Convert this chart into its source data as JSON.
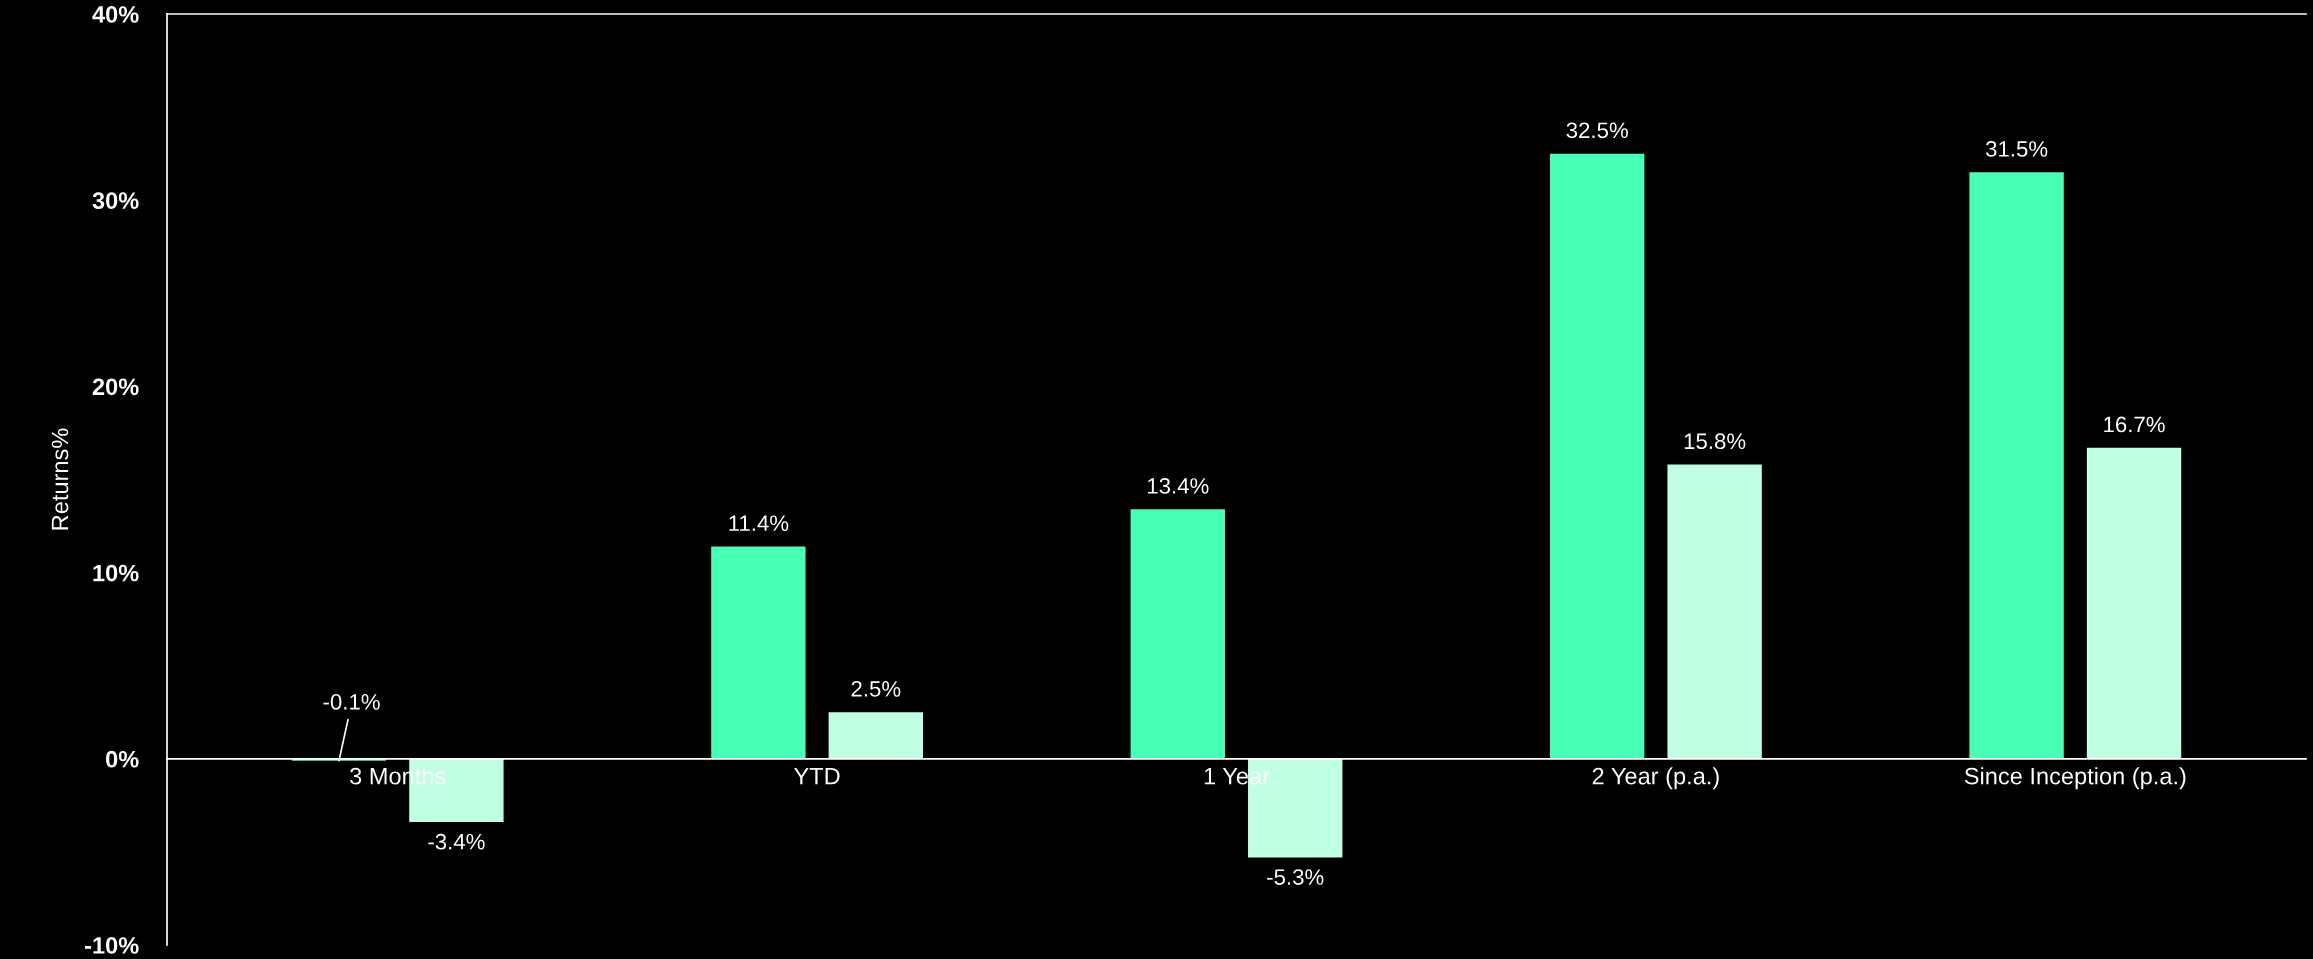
{
  "chart_data": {
    "type": "bar",
    "ylabel": "Returns%",
    "categories": [
      "3 Months",
      "YTD",
      "1 Year",
      "2 Year (p.a.)",
      "Since Inception (p.a.)"
    ],
    "series": [
      {
        "color": "#47ffb5",
        "values": [
          -0.1,
          11.4,
          13.4,
          32.5,
          31.5
        ],
        "value_labels": [
          "-0.1%",
          "11.4%",
          "13.4%",
          "32.5%",
          "31.5%"
        ]
      },
      {
        "color": "#c0ffe4",
        "values": [
          -3.4,
          2.5,
          -5.3,
          15.8,
          16.7
        ],
        "value_labels": [
          "-3.4%",
          "2.5%",
          "-5.3%",
          "15.8%",
          "16.7%"
        ]
      }
    ],
    "ylim": [
      -10,
      40
    ],
    "yticks": [
      {
        "value": -10,
        "label": "-10%"
      },
      {
        "value": 0,
        "label": "0%"
      },
      {
        "value": 10,
        "label": "10%"
      },
      {
        "value": 20,
        "label": "20%"
      },
      {
        "value": 30,
        "label": "30%"
      },
      {
        "value": 40,
        "label": "40%"
      }
    ],
    "grid": false
  }
}
